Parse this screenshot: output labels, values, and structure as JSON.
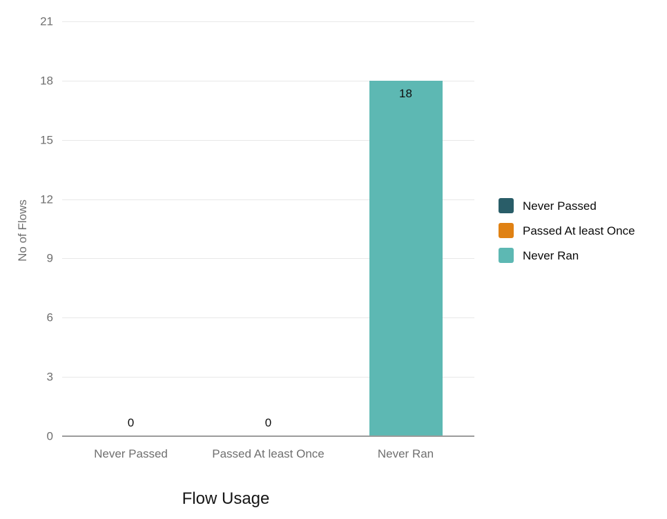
{
  "chart_data": {
    "type": "bar",
    "title": "",
    "xlabel": "Flow Usage",
    "ylabel": "No of Flows",
    "categories": [
      "Never Passed",
      "Passed At least Once",
      "Never Ran"
    ],
    "values": [
      0,
      0,
      18
    ],
    "value_labels": [
      "0",
      "0",
      "18"
    ],
    "series_colors": [
      "#295d68",
      "#e08113",
      "#5db8b3"
    ],
    "yticks": [
      0,
      3,
      6,
      9,
      12,
      15,
      18,
      21
    ],
    "ylim": [
      0,
      21
    ],
    "grid": "horizontal-only",
    "legend_position": "right",
    "legend": [
      {
        "label": "Never Passed",
        "color": "#295d68"
      },
      {
        "label": "Passed At least Once",
        "color": "#e08113"
      },
      {
        "label": "Never Ran",
        "color": "#5db8b3"
      }
    ]
  },
  "colors": {
    "background": "#ffffff",
    "gridline": "#e8e8e8",
    "axis_line": "#9a9a9a",
    "tick_label": "#6f6f6f",
    "axis_title_y": "#6f6f6f",
    "axis_title_x": "#151515",
    "value_label": "#0f0f0f",
    "legend_text": "#0a0a0a"
  }
}
